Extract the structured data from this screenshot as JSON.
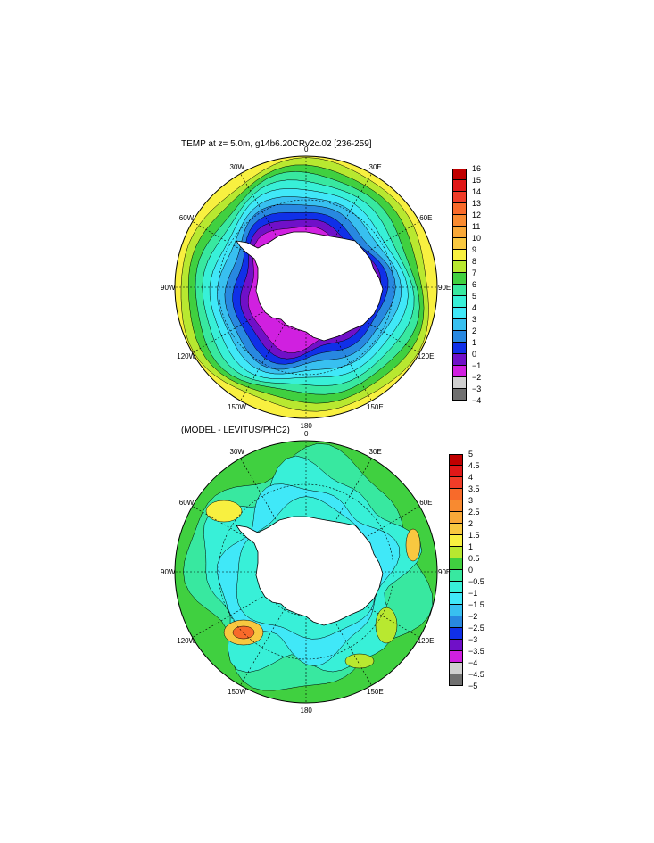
{
  "panel_top": {
    "title": "TEMP at z=   5.0m, g14b6.20CRv2c.02 [236-259]",
    "colorbar": {
      "labels": [
        "16",
        "15",
        "14",
        "13",
        "12",
        "11",
        "10",
        "9",
        "8",
        "7",
        "6",
        "5",
        "4",
        "3",
        "2",
        "1",
        "0",
        "−1",
        "−2",
        "−3",
        "−4"
      ],
      "colors": [
        "#c00000",
        "#e01818",
        "#f03c28",
        "#f86a2a",
        "#f88a30",
        "#f8a838",
        "#f8c840",
        "#f8f040",
        "#b8e830",
        "#40d040",
        "#38e8a0",
        "#38f0d8",
        "#40e8f8",
        "#38c0f0",
        "#2888e0",
        "#1030e8",
        "#7010c8",
        "#d020e0",
        "#d0d0d0",
        "#707070"
      ]
    },
    "longitudes": [
      "0",
      "30E",
      "60E",
      "90E",
      "120E",
      "150E",
      "180",
      "150W",
      "120W",
      "90W",
      "60W",
      "30W"
    ]
  },
  "panel_bottom": {
    "title": "(MODEL - LEVITUS/PHC2)",
    "colorbar": {
      "labels": [
        "5",
        "4.5",
        "4",
        "3.5",
        "3",
        "2.5",
        "2",
        "1.5",
        "1",
        "0.5",
        "0",
        "−0.5",
        "−1",
        "−1.5",
        "−2",
        "−2.5",
        "−3",
        "−3.5",
        "−4",
        "−4.5",
        "−5"
      ],
      "colors": [
        "#c00000",
        "#e01818",
        "#f03c28",
        "#f86a2a",
        "#f88a30",
        "#f8a838",
        "#f8c840",
        "#f8f040",
        "#b8e830",
        "#40d040",
        "#38e8a0",
        "#38f0d8",
        "#40e8f8",
        "#38c0f0",
        "#2888e0",
        "#1030e8",
        "#7010c8",
        "#d020e0",
        "#d0d0d0",
        "#707070"
      ]
    },
    "longitudes": [
      "0",
      "30E",
      "60E",
      "90E",
      "120E",
      "150E",
      "180",
      "150W",
      "120W",
      "90W",
      "60W",
      "30W"
    ]
  }
}
